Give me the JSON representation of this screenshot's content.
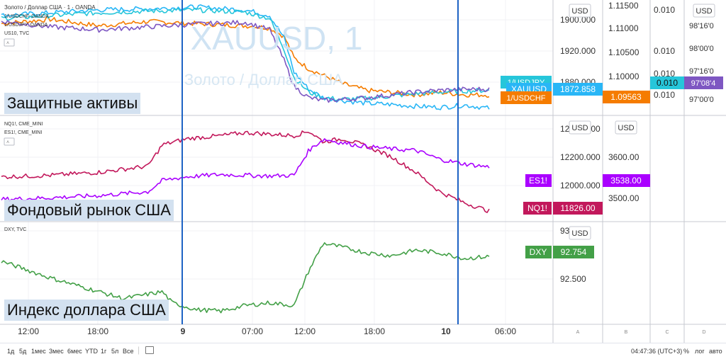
{
  "panels": {
    "top": {
      "legend": [
        "Золото / Доллар США · 1 · OANDA",
        "1/USDCHF, OANDA",
        "1/USDJPY, OANDA",
        "US10, TVC"
      ],
      "watermark_title": "XAUUSD, 1",
      "watermark_sub": "Золото / Доллар США",
      "caption": "Защитные активы",
      "price_unit": "USD",
      "axis_a_ticks": [
        "1900.000",
        "1920.000",
        "1880.000"
      ],
      "axis_b_ticks": [
        "1.11500",
        "1.11000",
        "1.10500",
        "1.10000",
        "1.09500"
      ],
      "axis_c_ticks": [
        "0.010",
        "0.010",
        "0.010",
        "0.010"
      ],
      "axis_d_ticks": [
        "98'16'0",
        "98'00'0",
        "97'16'0",
        "97'00'0"
      ],
      "badges": {
        "jpy": "1/USDJPY",
        "xau": "XAUUSD",
        "xau_value": "1872.858",
        "chf": "1/USDCHF",
        "chf_value": "1.09563",
        "us10_c": "0.010",
        "us10_d": "97'08'4"
      }
    },
    "mid": {
      "legend": [
        "NQ1!, CME_MINI",
        "ES1!, CME_MINI"
      ],
      "caption": "Фондовый рынок США",
      "price_unit": "USD",
      "axis_a_ticks": [
        "12400.000",
        "12200.000",
        "12000.000"
      ],
      "axis_b_ticks": [
        "3600.00",
        "3500.00"
      ],
      "badges": {
        "es": "ES1!",
        "es_value": "3538.00",
        "nq": "NQ1!",
        "nq_value": "11826.00"
      }
    },
    "bot": {
      "legend": [
        "DXY, TVC"
      ],
      "caption": "Индекс доллара США",
      "price_unit": "USD",
      "axis_a_ticks": [
        "93",
        "92.500"
      ],
      "badges": {
        "dxy": "DXY",
        "dxy_value": "92.754"
      }
    }
  },
  "time_axis": {
    "labels": [
      "12:00",
      "18:00",
      "9",
      "07:00",
      "12:00",
      "18:00",
      "10",
      "06:00"
    ],
    "scale_letters": [
      "A",
      "B",
      "C",
      "D"
    ]
  },
  "toolbar": {
    "ranges": [
      "1д",
      "5д",
      "1мес",
      "3мес",
      "6мес",
      "YTD",
      "1г",
      "5л",
      "Все"
    ],
    "clock": "04:47:36 (UTC+3)",
    "percent": "%",
    "log": "лог",
    "auto": "авто"
  },
  "colors": {
    "xauusd": "#f57c00",
    "usdchf": "#29b6f6",
    "usdjpy": "#26c6da",
    "us10": "#7e57c2",
    "nq": "#c2185b",
    "es": "#aa00ff",
    "dxy": "#43a047",
    "marker": "#1e63c4"
  },
  "chart_data": [
    {
      "type": "line",
      "title": "Защитные активы",
      "series": [
        {
          "name": "Золото / Доллар США · 1 · OANDA",
          "x": [
            0,
            10,
            20,
            30,
            40,
            50,
            55,
            58,
            60,
            63,
            66,
            70,
            75,
            80,
            85,
            90,
            95,
            100
          ],
          "y": [
            1906,
            1908,
            1905,
            1907,
            1906,
            1905,
            1904,
            1900,
            1890,
            1885,
            1882,
            1878,
            1875,
            1874,
            1873,
            1874,
            1873,
            1872.858
          ]
        },
        {
          "name": "1/USDCHF, OANDA",
          "x": [
            0,
            10,
            20,
            30,
            40,
            50,
            55,
            58,
            60,
            63,
            66,
            70,
            75,
            80,
            85,
            90,
            95,
            100
          ],
          "y": [
            1.112,
            1.1125,
            1.113,
            1.1132,
            1.1135,
            1.113,
            1.112,
            1.108,
            1.102,
            1.099,
            1.0975,
            1.097,
            1.0965,
            1.0963,
            1.096,
            1.0958,
            1.0962,
            1.09563
          ]
        },
        {
          "name": "1/USDJPY, OANDA",
          "x": [
            0,
            10,
            20,
            30,
            40,
            50,
            55,
            58,
            60,
            63,
            66,
            70,
            75,
            80,
            85,
            90,
            95,
            100
          ],
          "y": [
            1.1115,
            1.112,
            1.1125,
            1.1128,
            1.113,
            1.1126,
            1.1115,
            1.106,
            1.101,
            1.0985,
            1.0975,
            1.0972,
            1.0974,
            1.0978,
            1.0982,
            1.0985,
            1.0987,
            1.0988
          ]
        },
        {
          "name": "US10, TVC",
          "x": [
            0,
            10,
            20,
            30,
            40,
            50,
            55,
            58,
            60,
            63,
            66,
            70,
            75,
            80,
            85,
            90,
            95,
            100
          ],
          "y": [
            1.111,
            1.11,
            1.1095,
            1.11,
            1.1105,
            1.1108,
            1.1095,
            1.104,
            1.0995,
            1.0975,
            1.097,
            1.0972,
            1.0975,
            1.098,
            1.0985,
            1.0988,
            1.099,
            1.099
          ]
        }
      ]
    },
    {
      "type": "line",
      "title": "Фондовый рынок США",
      "series": [
        {
          "name": "NQ1!, CME_MINI",
          "x": [
            0,
            10,
            20,
            30,
            33,
            38,
            45,
            50,
            55,
            60,
            63,
            66,
            70,
            75,
            80,
            85,
            90,
            95,
            100
          ],
          "y": [
            12050,
            12060,
            12080,
            12120,
            12260,
            12300,
            12320,
            12340,
            12330,
            12320,
            12350,
            12280,
            12300,
            12250,
            12180,
            12080,
            11950,
            11880,
            11826
          ]
        },
        {
          "name": "ES1!, CME_MINI",
          "x": [
            0,
            10,
            20,
            30,
            33,
            38,
            45,
            50,
            55,
            60,
            63,
            66,
            70,
            75,
            80,
            85,
            90,
            95,
            100
          ],
          "y": [
            3495,
            3497,
            3500,
            3505,
            3520,
            3525,
            3528,
            3527,
            3526,
            3527,
            3560,
            3575,
            3570,
            3565,
            3562,
            3560,
            3548,
            3542,
            3538
          ]
        }
      ]
    },
    {
      "type": "line",
      "title": "Индекс доллара США",
      "series": [
        {
          "name": "DXY, TVC",
          "x": [
            0,
            5,
            10,
            15,
            20,
            25,
            33,
            35,
            40,
            45,
            50,
            55,
            60,
            63,
            66,
            70,
            75,
            80,
            85,
            90,
            95,
            100
          ],
          "y": [
            92.72,
            92.66,
            92.6,
            92.55,
            92.5,
            92.45,
            92.5,
            92.42,
            92.37,
            92.36,
            92.4,
            92.42,
            92.4,
            92.65,
            92.85,
            92.82,
            92.78,
            92.76,
            92.8,
            92.78,
            92.74,
            92.754
          ]
        }
      ]
    }
  ]
}
